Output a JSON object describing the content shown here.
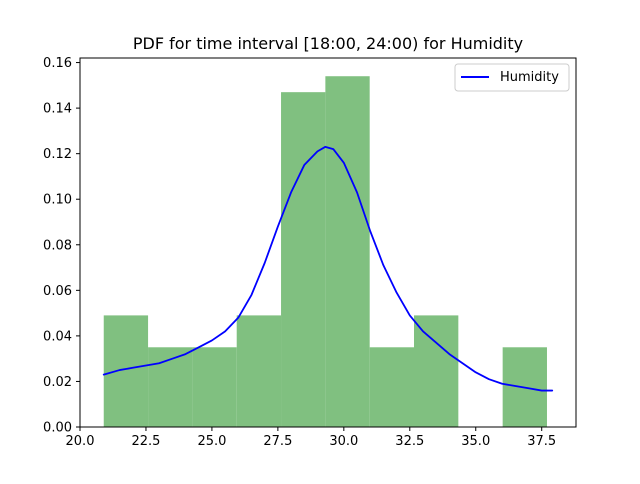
{
  "chart_data": {
    "type": "histogram",
    "title": "PDF for time interval [18:00, 24:00) for Humidity",
    "xlabel": "",
    "ylabel": "",
    "xlim": [
      20.0,
      38.8
    ],
    "ylim": [
      0.0,
      0.162
    ],
    "xticks": [
      20.0,
      22.5,
      25.0,
      27.5,
      30.0,
      32.5,
      35.0,
      37.5
    ],
    "xtick_labels": [
      "20.0",
      "22.5",
      "25.0",
      "27.5",
      "30.0",
      "32.5",
      "35.0",
      "37.5"
    ],
    "yticks": [
      0.0,
      0.02,
      0.04,
      0.06,
      0.08,
      0.1,
      0.12,
      0.14,
      0.16
    ],
    "ytick_labels": [
      "0.00",
      "0.02",
      "0.04",
      "0.06",
      "0.08",
      "0.10",
      "0.12",
      "0.14",
      "0.16"
    ],
    "grid": false,
    "legend": {
      "position": "top-right",
      "entries": [
        "Humidity"
      ]
    },
    "histogram": {
      "color": "#80c080",
      "bins": [
        {
          "x0": 20.9,
          "x1": 22.58,
          "density": 0.049
        },
        {
          "x0": 22.58,
          "x1": 24.26,
          "density": 0.035
        },
        {
          "x0": 24.26,
          "x1": 25.94,
          "density": 0.035
        },
        {
          "x0": 25.94,
          "x1": 27.62,
          "density": 0.049
        },
        {
          "x0": 27.62,
          "x1": 29.3,
          "density": 0.147
        },
        {
          "x0": 29.3,
          "x1": 30.98,
          "density": 0.154
        },
        {
          "x0": 30.98,
          "x1": 32.66,
          "density": 0.035
        },
        {
          "x0": 32.66,
          "x1": 34.34,
          "density": 0.049
        },
        {
          "x0": 34.34,
          "x1": 36.02,
          "density": 0.0
        },
        {
          "x0": 36.02,
          "x1": 37.7,
          "density": 0.035
        }
      ]
    },
    "series": [
      {
        "name": "Humidity",
        "type": "line",
        "color": "#0000ff",
        "x": [
          20.9,
          21.5,
          22.0,
          22.5,
          23.0,
          23.5,
          24.0,
          24.5,
          25.0,
          25.5,
          26.0,
          26.5,
          27.0,
          27.5,
          28.0,
          28.5,
          29.0,
          29.3,
          29.6,
          30.0,
          30.5,
          31.0,
          31.5,
          32.0,
          32.5,
          33.0,
          33.5,
          34.0,
          34.5,
          35.0,
          35.5,
          36.0,
          36.5,
          37.0,
          37.5,
          37.9
        ],
        "y": [
          0.023,
          0.025,
          0.026,
          0.027,
          0.028,
          0.03,
          0.032,
          0.035,
          0.038,
          0.042,
          0.048,
          0.058,
          0.072,
          0.088,
          0.103,
          0.115,
          0.121,
          0.123,
          0.122,
          0.116,
          0.103,
          0.086,
          0.071,
          0.059,
          0.049,
          0.042,
          0.037,
          0.032,
          0.028,
          0.024,
          0.021,
          0.019,
          0.018,
          0.017,
          0.016,
          0.016
        ]
      }
    ]
  }
}
